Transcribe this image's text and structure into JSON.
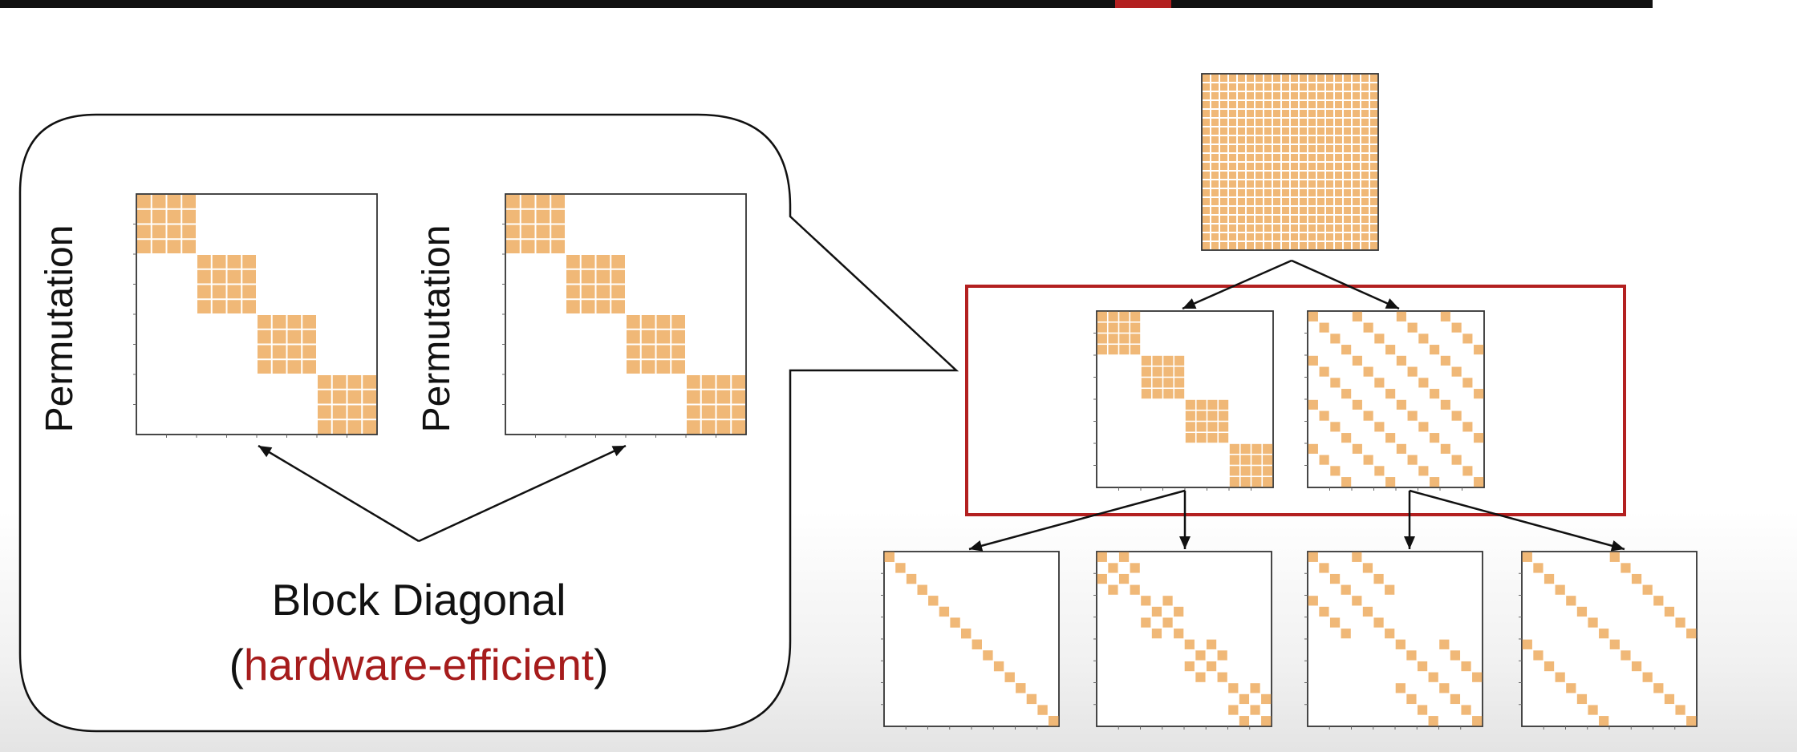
{
  "left_panel": {
    "left_matrix_label": "Permutation",
    "right_matrix_label": "Permutation",
    "caption_line1": "Block Diagonal",
    "caption_open_paren": "(",
    "caption_highlight": "hardware-efficient",
    "caption_close_paren": ")"
  },
  "colors": {
    "cell_fill": "#f0b877",
    "highlight_text": "#a61c1c",
    "highlight_box": "#b32020",
    "line": "#111111"
  },
  "matrix_sizes": {
    "block_diagonal": "4 blocks of 4x4",
    "dense": "16x16",
    "small_permutation_like": "16x16"
  }
}
